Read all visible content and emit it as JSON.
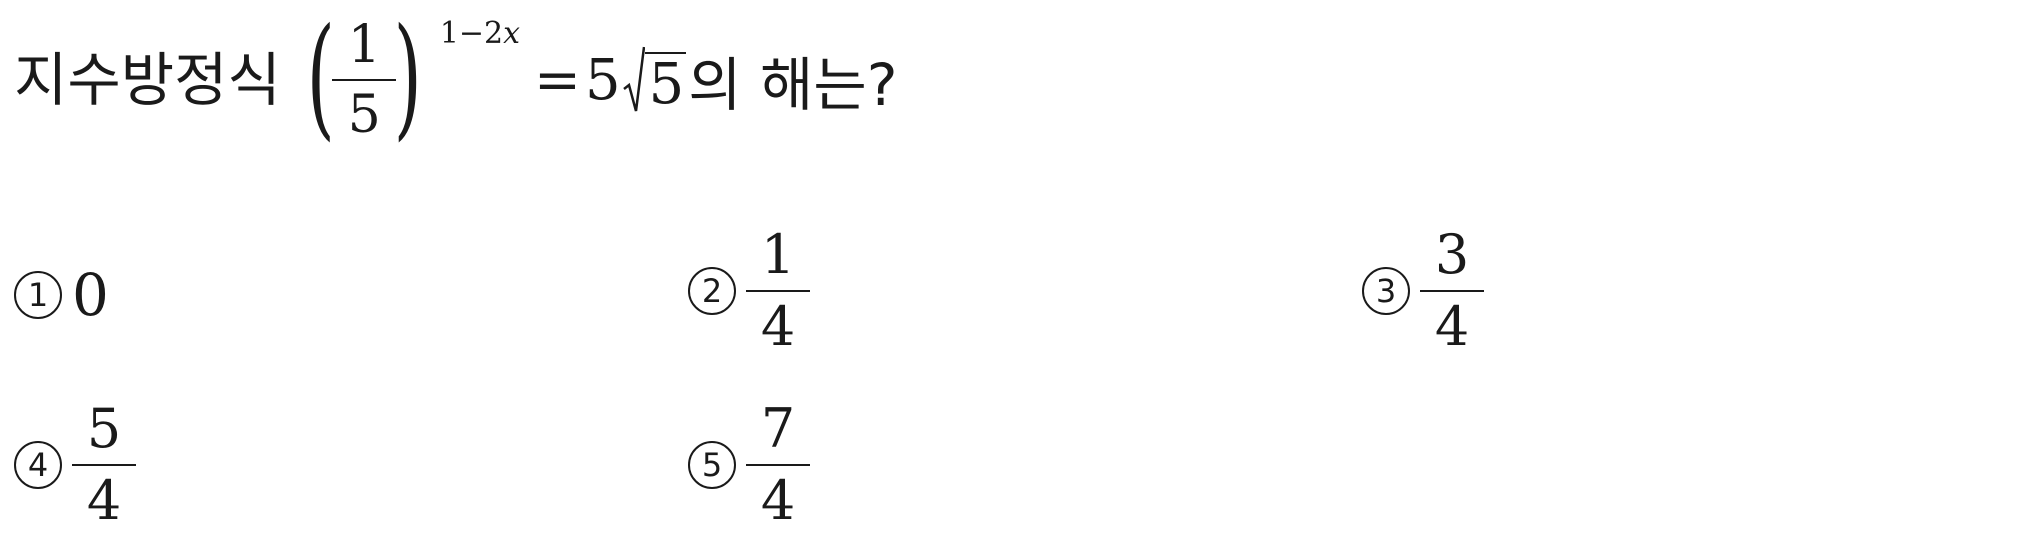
{
  "question": {
    "prefix": "지수방정식",
    "base_fraction": {
      "numerator": "1",
      "denominator": "5"
    },
    "exponent_const": "1−2",
    "exponent_var": "x",
    "equals": "=",
    "rhs_coefficient": "5",
    "rhs_radicand": "5",
    "suffix": "의 해는?"
  },
  "choices": [
    {
      "marker": "1",
      "value": "0"
    },
    {
      "marker": "2",
      "numerator": "1",
      "denominator": "4"
    },
    {
      "marker": "3",
      "numerator": "3",
      "denominator": "4"
    },
    {
      "marker": "4",
      "numerator": "5",
      "denominator": "4"
    },
    {
      "marker": "5",
      "numerator": "7",
      "denominator": "4"
    }
  ]
}
